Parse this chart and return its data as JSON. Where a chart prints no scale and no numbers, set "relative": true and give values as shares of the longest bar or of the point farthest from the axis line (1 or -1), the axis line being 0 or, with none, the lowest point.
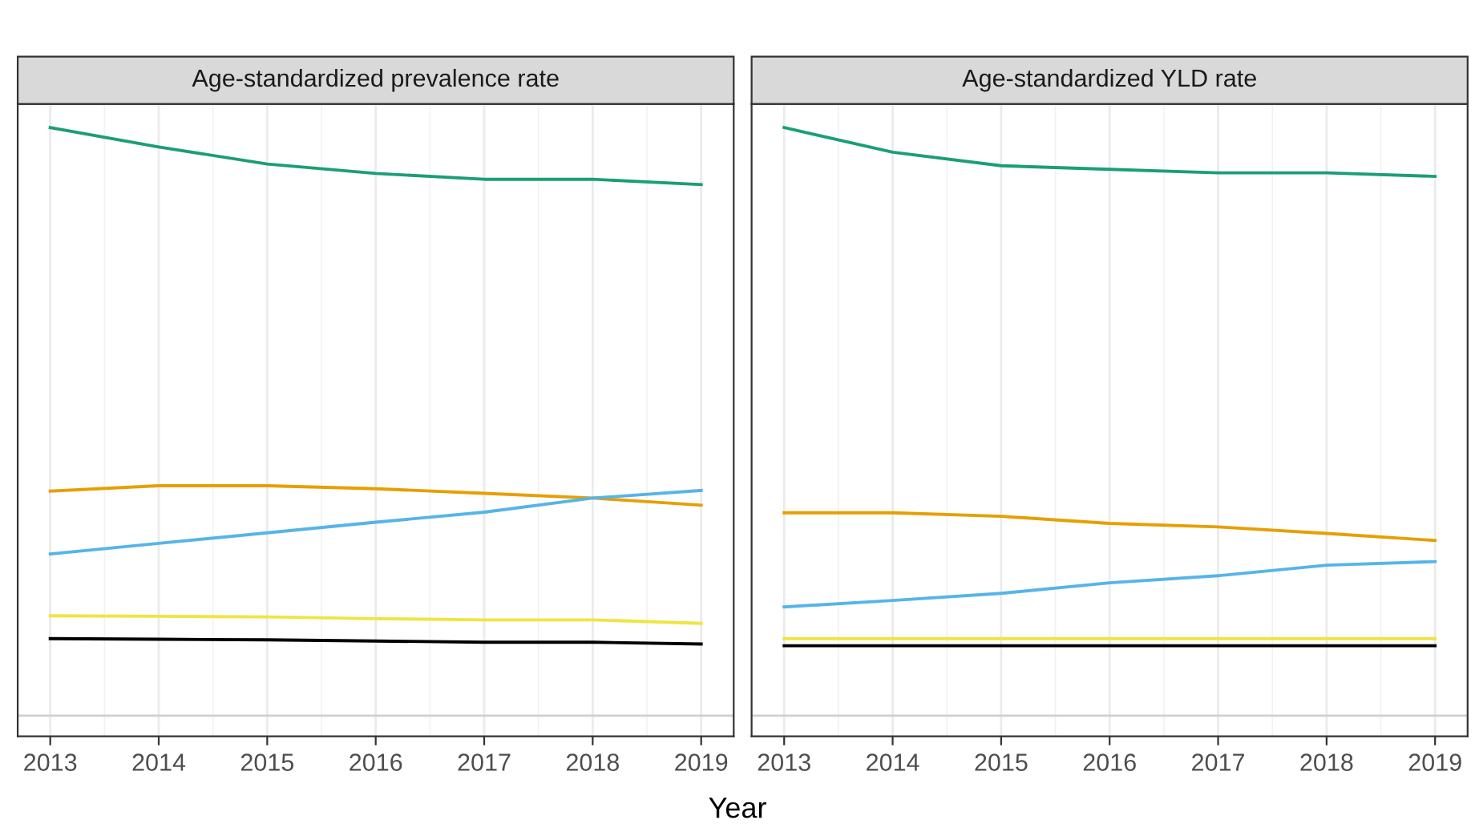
{
  "chart_data": [
    {
      "type": "line",
      "title": "Age-standardized prevalence rate",
      "xlabel": "Year",
      "relative": true,
      "grid": "x",
      "legend": false,
      "x": [
        2013,
        2014,
        2015,
        2016,
        2017,
        2018,
        2019
      ],
      "xlim": [
        2012.7,
        2019.3
      ],
      "xticks": [
        2013,
        2014,
        2015,
        2016,
        2017,
        2018,
        2019
      ],
      "series": [
        {
          "color": "#1b9e77",
          "values": [
            1,
            0.967,
            0.938,
            0.922,
            0.912,
            0.912,
            0.903
          ]
        },
        {
          "color": "#e69f00",
          "values": [
            0.382,
            0.391,
            0.391,
            0.386,
            0.378,
            0.37,
            0.358
          ]
        },
        {
          "color": "#56b4e9",
          "values": [
            0.275,
            0.293,
            0.311,
            0.329,
            0.346,
            0.37,
            0.383
          ]
        },
        {
          "color": "#f0e442",
          "values": [
            0.17,
            0.169,
            0.168,
            0.165,
            0.163,
            0.163,
            0.157
          ]
        },
        {
          "color": "#000000",
          "values": [
            0.131,
            0.13,
            0.129,
            0.127,
            0.125,
            0.125,
            0.122
          ]
        }
      ]
    },
    {
      "type": "line",
      "title": "Age-standardized YLD rate",
      "relative": true,
      "grid": "x",
      "legend": false,
      "x": [
        2013,
        2014,
        2015,
        2016,
        2017,
        2018,
        2019
      ],
      "xlim": [
        2012.7,
        2019.3
      ],
      "xticks": [
        2013,
        2014,
        2015,
        2016,
        2017,
        2018,
        2019
      ],
      "series": [
        {
          "color": "#1b9e77",
          "values": [
            1,
            0.958,
            0.935,
            0.929,
            0.923,
            0.923,
            0.917
          ]
        },
        {
          "color": "#e69f00",
          "values": [
            0.345,
            0.345,
            0.339,
            0.327,
            0.321,
            0.31,
            0.298
          ]
        },
        {
          "color": "#56b4e9",
          "values": [
            0.185,
            0.196,
            0.208,
            0.226,
            0.238,
            0.256,
            0.262
          ]
        },
        {
          "color": "#f0e442",
          "values": [
            0.131,
            0.131,
            0.131,
            0.131,
            0.131,
            0.131,
            0.131
          ]
        },
        {
          "color": "#000000",
          "values": [
            0.119,
            0.119,
            0.119,
            0.119,
            0.119,
            0.119,
            0.119
          ]
        }
      ]
    }
  ]
}
